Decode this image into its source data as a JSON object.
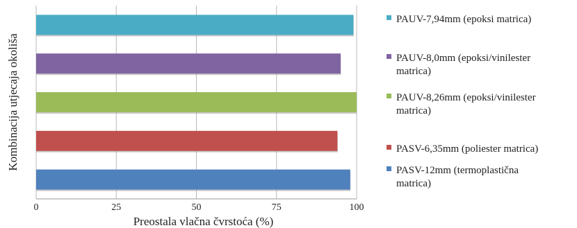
{
  "chart_data": {
    "type": "bar",
    "orientation": "horizontal",
    "xlabel": "Preostala vlačna čvrstoća (%)",
    "ylabel": "Kombinacija utjecaja okoliša",
    "xlim": [
      0,
      100
    ],
    "xticks": [
      "0",
      "25",
      "50",
      "75",
      "100"
    ],
    "grid": "vertical",
    "legend_position": "right",
    "series": [
      {
        "name": "PAUV-7,94mm (epoksi matrica)",
        "name_lines": [
          "PAUV-7,94mm (epoksi matrica)"
        ],
        "value": 99,
        "color": "#4bacc6"
      },
      {
        "name": "PAUV-8,0mm (epoksi/vinilester matrica)",
        "name_lines": [
          "PAUV-8,0mm (epoksi/vinilester",
          "matrica)"
        ],
        "value": 95,
        "color": "#8064a2"
      },
      {
        "name": "PAUV-8,26mm (epoksi/vinilester matrica)",
        "name_lines": [
          "PAUV-8,26mm (epoksi/vinilester",
          "matrica)"
        ],
        "value": 100,
        "color": "#9bbb59"
      },
      {
        "name": "PASV-6,35mm (poliester matrica)",
        "name_lines": [
          "PASV-6,35mm (poliester matrica)"
        ],
        "value": 94,
        "color": "#c0504d"
      },
      {
        "name": "PASV-12mm (termoplastična matrica)",
        "name_lines": [
          "PASV-12mm (termoplastična",
          "matrica)"
        ],
        "value": 98,
        "color": "#4f81bd"
      }
    ]
  }
}
